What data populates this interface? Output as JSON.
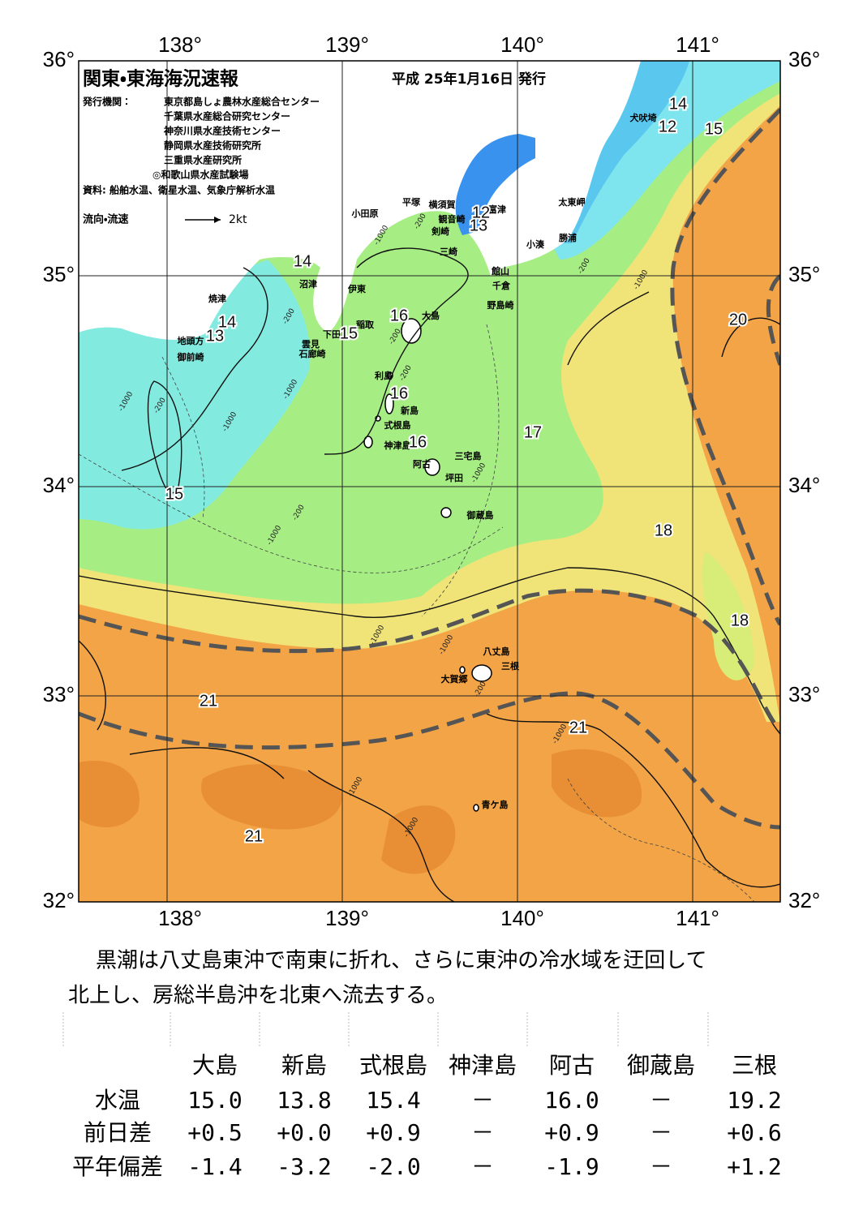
{
  "header": {
    "title": "関東・東海海況速報",
    "date": "平成 25年1月16日 発行",
    "issuer_label": "発行機関：",
    "issuers": [
      "東京都島しょ農林水産総合センター",
      "千葉県水産総合研究センター",
      "神奈川県水産技術センター",
      "静岡県水産技術研究所",
      "三重県水産研究所",
      "◎和歌山県水産試験場"
    ],
    "source": "資料: 船舶水温、衛星水温、気象庁解析水温",
    "flow_label": "流向・流速",
    "flow_scale": "2kt"
  },
  "map": {
    "lon_labels": [
      "138°",
      "139°",
      "140°",
      "141°"
    ],
    "lat_labels": [
      "36°",
      "35°",
      "34°",
      "33°",
      "32°"
    ],
    "places": [
      "犬吠埼",
      "太東岬",
      "勝浦",
      "小湊",
      "富津",
      "観音崎",
      "横須賀",
      "平塚",
      "小田原",
      "剣崎",
      "三崎",
      "館山",
      "千倉",
      "野島崎",
      "大島",
      "沼津",
      "伊東",
      "焼津",
      "稲取",
      "下田",
      "雲見",
      "石廊崎",
      "地頭方",
      "御前崎",
      "利島",
      "新島",
      "式根島",
      "神津島",
      "阿古",
      "三宅島",
      "坪田",
      "御蔵島",
      "八丈島",
      "三根",
      "大賀郷",
      "青ケ島"
    ],
    "temperature_labels": [
      "14",
      "12",
      "15",
      "12",
      "13",
      "14",
      "14",
      "13",
      "15",
      "16",
      "16",
      "16",
      "17",
      "15",
      "18",
      "18",
      "20",
      "21",
      "21",
      "21"
    ],
    "depth_labels": [
      "-200",
      "-1000",
      "-200",
      "-1000",
      "-1000",
      "-200",
      "-1000",
      "-200",
      "-200",
      "-1000",
      "-200",
      "-1000",
      "-1000",
      "-200",
      "-1000",
      "-1000",
      "-200",
      "-1000",
      "-1000",
      "-1000"
    ]
  },
  "summary": [
    "黒潮は八丈島東沖で南東に折れ、さらに東沖の冷水域を迂回して",
    "北上し、房総半島沖を北東へ流去する。"
  ],
  "table": {
    "columns": [
      "大島",
      "新島",
      "式根島",
      "神津島",
      "阿古",
      "御蔵島",
      "三根"
    ],
    "rows": [
      {
        "label": "水温",
        "cells": [
          "15.0",
          "13.8",
          "15.4",
          "－",
          "16.0",
          "－",
          "19.2"
        ]
      },
      {
        "label": "前日差",
        "cells": [
          "+0.5",
          "+0.0",
          "+0.9",
          "－",
          "+0.9",
          "－",
          "+0.6"
        ]
      },
      {
        "label": "平年偏差",
        "cells": [
          "-1.4",
          "-3.2",
          "-2.0",
          "－",
          "-1.9",
          "－",
          "+1.2"
        ]
      }
    ]
  }
}
